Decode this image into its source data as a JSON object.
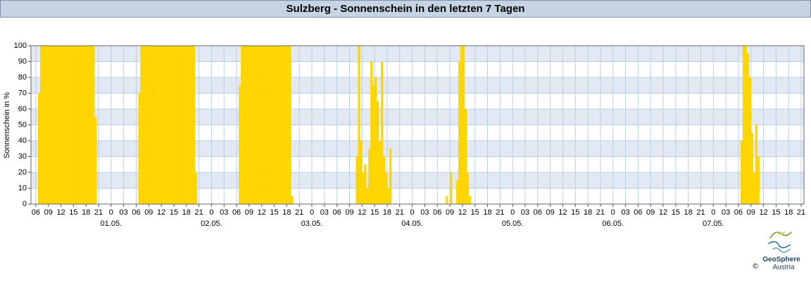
{
  "chart_data": {
    "type": "bar",
    "title": "Sulzberg - Sonnenschein in den letzten 7 Tagen",
    "ylabel": "Sonnenschein in %",
    "color": "#ffd500",
    "grid": true,
    "ylim": [
      0,
      100
    ],
    "yticks": [
      0,
      10,
      20,
      30,
      40,
      50,
      60,
      70,
      80,
      90,
      100
    ],
    "xlim": [
      "30.04. 04:50",
      "07.05. 21:40"
    ],
    "xticks": [
      {
        "value": "30.04. 06:00",
        "label": "06"
      },
      {
        "value": "30.04. 09:00",
        "label": "09"
      },
      {
        "value": "30.04. 12:00",
        "label": "12"
      },
      {
        "value": "30.04. 15:00",
        "label": "15"
      },
      {
        "value": "30.04. 18:00",
        "label": "18"
      },
      {
        "value": "30.04. 21:00",
        "label": "21"
      },
      {
        "value": "01.05. 00:00",
        "label": "0"
      },
      {
        "value": "01.05. 03:00",
        "label": "03"
      },
      {
        "value": "01.05. 06:00",
        "label": "06"
      },
      {
        "value": "01.05. 09:00",
        "label": "09"
      },
      {
        "value": "01.05. 12:00",
        "label": "12"
      },
      {
        "value": "01.05. 15:00",
        "label": "15"
      },
      {
        "value": "01.05. 18:00",
        "label": "18"
      },
      {
        "value": "01.05. 21:00",
        "label": "21"
      },
      {
        "value": "02.05. 00:00",
        "label": "0"
      },
      {
        "value": "02.05. 03:00",
        "label": "03"
      },
      {
        "value": "02.05. 06:00",
        "label": "06"
      },
      {
        "value": "02.05. 09:00",
        "label": "09"
      },
      {
        "value": "02.05. 12:00",
        "label": "12"
      },
      {
        "value": "02.05. 15:00",
        "label": "15"
      },
      {
        "value": "02.05. 18:00",
        "label": "18"
      },
      {
        "value": "02.05. 21:00",
        "label": "21"
      },
      {
        "value": "03.05. 00:00",
        "label": "0"
      },
      {
        "value": "03.05. 03:00",
        "label": "03"
      },
      {
        "value": "03.05. 06:00",
        "label": "06"
      },
      {
        "value": "03.05. 09:00",
        "label": "09"
      },
      {
        "value": "03.05. 12:00",
        "label": "12"
      },
      {
        "value": "03.05. 15:00",
        "label": "15"
      },
      {
        "value": "03.05. 18:00",
        "label": "18"
      },
      {
        "value": "03.05. 21:00",
        "label": "21"
      },
      {
        "value": "04.05. 00:00",
        "label": "0"
      },
      {
        "value": "04.05. 03:00",
        "label": "03"
      },
      {
        "value": "04.05. 06:00",
        "label": "06"
      },
      {
        "value": "04.05. 09:00",
        "label": "09"
      },
      {
        "value": "04.05. 12:00",
        "label": "12"
      },
      {
        "value": "04.05. 15:00",
        "label": "15"
      },
      {
        "value": "04.05. 18:00",
        "label": "18"
      },
      {
        "value": "04.05. 21:00",
        "label": "21"
      },
      {
        "value": "05.05. 00:00",
        "label": "0"
      },
      {
        "value": "05.05. 03:00",
        "label": "03"
      },
      {
        "value": "05.05. 06:00",
        "label": "06"
      },
      {
        "value": "05.05. 09:00",
        "label": "09"
      },
      {
        "value": "05.05. 12:00",
        "label": "12"
      },
      {
        "value": "05.05. 15:00",
        "label": "15"
      },
      {
        "value": "05.05. 18:00",
        "label": "18"
      },
      {
        "value": "05.05. 21:00",
        "label": "21"
      },
      {
        "value": "06.05. 00:00",
        "label": "0"
      },
      {
        "value": "06.05. 03:00",
        "label": "03"
      },
      {
        "value": "06.05. 06:00",
        "label": "06"
      },
      {
        "value": "06.05. 09:00",
        "label": "09"
      },
      {
        "value": "06.05. 12:00",
        "label": "12"
      },
      {
        "value": "06.05. 15:00",
        "label": "15"
      },
      {
        "value": "06.05. 18:00",
        "label": "18"
      },
      {
        "value": "06.05. 21:00",
        "label": "21"
      },
      {
        "value": "07.05. 00:00",
        "label": "0"
      },
      {
        "value": "07.05. 03:00",
        "label": "03"
      },
      {
        "value": "07.05. 06:00",
        "label": "06"
      },
      {
        "value": "07.05. 09:00",
        "label": "09"
      },
      {
        "value": "07.05. 12:00",
        "label": "12"
      },
      {
        "value": "07.05. 15:00",
        "label": "15"
      },
      {
        "value": "07.05. 18:00",
        "label": "18"
      },
      {
        "value": "07.05. 21:00",
        "label": "21"
      }
    ],
    "date_labels": [
      {
        "value": "01.05. 00:00",
        "label": "01.05."
      },
      {
        "value": "02.05. 00:00",
        "label": "02.05."
      },
      {
        "value": "03.05. 00:00",
        "label": "03.05."
      },
      {
        "value": "04.05. 00:00",
        "label": "04.05."
      },
      {
        "value": "05.05. 00:00",
        "label": "05.05."
      },
      {
        "value": "06.05. 00:00",
        "label": "06.05."
      },
      {
        "value": "07.05. 00:00",
        "label": "07.05."
      }
    ],
    "x": [
      "30.04. 06:30",
      "30.04. 07:00",
      "30.04. 07:30",
      "30.04. 08:00",
      "30.04. 08:30",
      "30.04. 09:00",
      "30.04. 09:30",
      "30.04. 10:00",
      "30.04. 10:30",
      "30.04. 11:00",
      "30.04. 11:30",
      "30.04. 12:00",
      "30.04. 12:30",
      "30.04. 13:00",
      "30.04. 13:30",
      "30.04. 14:00",
      "30.04. 14:30",
      "30.04. 15:00",
      "30.04. 15:30",
      "30.04. 16:00",
      "30.04. 16:30",
      "30.04. 17:00",
      "30.04. 17:30",
      "30.04. 18:00",
      "30.04. 18:30",
      "30.04. 19:00",
      "30.04. 19:30",
      "30.04. 20:00",
      "01.05. 06:30",
      "01.05. 07:00",
      "01.05. 07:30",
      "01.05. 08:00",
      "01.05. 08:30",
      "01.05. 09:00",
      "01.05. 09:30",
      "01.05. 10:00",
      "01.05. 10:30",
      "01.05. 11:00",
      "01.05. 11:30",
      "01.05. 12:00",
      "01.05. 12:30",
      "01.05. 13:00",
      "01.05. 13:30",
      "01.05. 14:00",
      "01.05. 14:30",
      "01.05. 15:00",
      "01.05. 15:30",
      "01.05. 16:00",
      "01.05. 16:30",
      "01.05. 17:00",
      "01.05. 17:30",
      "01.05. 18:00",
      "01.05. 18:30",
      "01.05. 19:00",
      "01.05. 19:30",
      "01.05. 20:00",
      "02.05. 06:30",
      "02.05. 07:00",
      "02.05. 07:30",
      "02.05. 08:00",
      "02.05. 08:30",
      "02.05. 09:00",
      "02.05. 09:30",
      "02.05. 10:00",
      "02.05. 10:30",
      "02.05. 11:00",
      "02.05. 11:30",
      "02.05. 12:00",
      "02.05. 12:30",
      "02.05. 13:00",
      "02.05. 13:30",
      "02.05. 14:00",
      "02.05. 14:30",
      "02.05. 15:00",
      "02.05. 15:30",
      "02.05. 16:00",
      "02.05. 16:30",
      "02.05. 17:00",
      "02.05. 17:30",
      "02.05. 18:00",
      "02.05. 18:30",
      "02.05. 19:00",
      "03.05. 10:30",
      "03.05. 11:00",
      "03.05. 11:30",
      "03.05. 12:00",
      "03.05. 12:30",
      "03.05. 13:00",
      "03.05. 13:30",
      "03.05. 14:00",
      "03.05. 14:30",
      "03.05. 15:00",
      "03.05. 15:30",
      "03.05. 16:00",
      "03.05. 16:30",
      "03.05. 17:00",
      "03.05. 17:30",
      "03.05. 18:00",
      "03.05. 18:30",
      "04.05. 08:00",
      "04.05. 09:00",
      "04.05. 10:30",
      "04.05. 11:00",
      "04.05. 11:30",
      "04.05. 12:00",
      "04.05. 12:30",
      "04.05. 13:00",
      "04.05. 13:30",
      "07.05. 06:30",
      "07.05. 07:00",
      "07.05. 07:30",
      "07.05. 08:00",
      "07.05. 08:30",
      "07.05. 09:00",
      "07.05. 09:30",
      "07.05. 10:00",
      "07.05. 10:30"
    ],
    "values": [
      70,
      100,
      100,
      100,
      100,
      100,
      100,
      100,
      100,
      100,
      100,
      100,
      100,
      100,
      100,
      100,
      100,
      100,
      100,
      100,
      100,
      100,
      100,
      100,
      100,
      100,
      100,
      55,
      70,
      100,
      100,
      100,
      100,
      100,
      100,
      100,
      100,
      100,
      100,
      100,
      100,
      100,
      100,
      100,
      100,
      100,
      100,
      100,
      100,
      100,
      100,
      100,
      100,
      100,
      100,
      20,
      75,
      100,
      100,
      100,
      100,
      100,
      100,
      100,
      100,
      100,
      100,
      100,
      100,
      100,
      100,
      100,
      100,
      100,
      100,
      100,
      100,
      100,
      100,
      100,
      100,
      5,
      30,
      100,
      40,
      20,
      25,
      10,
      35,
      90,
      75,
      80,
      65,
      40,
      90,
      30,
      20,
      10,
      35,
      5,
      20,
      15,
      90,
      100,
      100,
      60,
      20,
      5,
      40,
      100,
      100,
      95,
      80,
      45,
      20,
      50,
      30
    ]
  },
  "logo": {
    "name": "GeoSphere",
    "country": "Austria",
    "copyright": "©"
  }
}
